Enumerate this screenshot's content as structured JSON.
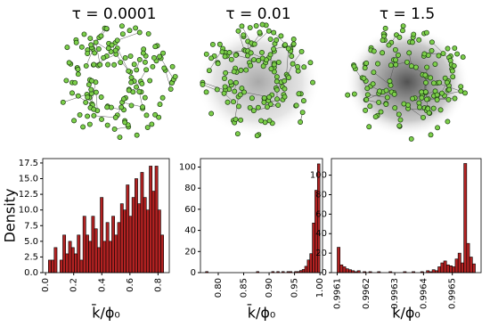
{
  "chart_data": [
    {
      "type": "histogram",
      "title": "τ = 0.0001",
      "ylabel": "Density",
      "xlabel": "k̄/ϕ₀",
      "color": "#b22222",
      "bins": [
        0.02,
        0.0405,
        0.061,
        0.0815,
        0.102,
        0.1225,
        0.143,
        0.1635,
        0.184,
        0.2045,
        0.225,
        0.2455,
        0.266,
        0.2865,
        0.307,
        0.3275,
        0.348,
        0.3685,
        0.389,
        0.4095,
        0.43,
        0.4505,
        0.471,
        0.4915,
        0.512,
        0.5325,
        0.553,
        0.5735,
        0.594,
        0.6145,
        0.635,
        0.6555,
        0.676,
        0.6965,
        0.717,
        0.7375,
        0.758,
        0.7785,
        0.799,
        0.8195,
        0.84
      ],
      "counts": [
        2,
        2,
        4,
        0,
        2,
        6,
        3,
        5,
        4,
        3,
        6,
        2,
        9,
        6,
        5,
        9,
        7,
        4,
        12,
        5,
        8,
        5,
        9,
        6,
        8,
        11,
        10,
        14,
        9,
        12,
        15,
        11,
        16,
        12,
        10,
        17,
        13,
        17,
        10,
        6
      ],
      "xlim": [
        -0.02,
        0.88
      ],
      "xticks": [
        {
          "value": 0,
          "label": "0.0"
        },
        0.2,
        0.4,
        0.6,
        0.8
      ],
      "ylim": [
        0,
        18.2
      ],
      "yticks": [
        {
          "value": 0,
          "label": "0.0"
        },
        2.5,
        {
          "value": 5,
          "label": "5.0"
        },
        7.5,
        {
          "value": 10,
          "label": "10.0"
        },
        12.5,
        {
          "value": 15,
          "label": "15.0"
        },
        17.5
      ]
    },
    {
      "type": "histogram",
      "title": "τ = 0.01",
      "xlabel": "k̄/ϕ₀",
      "color": "#b22222",
      "bins": [
        0.775,
        0.78,
        0.785,
        0.79,
        0.795,
        0.8,
        0.805,
        0.81,
        0.815,
        0.82,
        0.825,
        0.83,
        0.835,
        0.84,
        0.845,
        0.85,
        0.855,
        0.86,
        0.865,
        0.87,
        0.875,
        0.88,
        0.885,
        0.89,
        0.895,
        0.9,
        0.905,
        0.91,
        0.915,
        0.92,
        0.925,
        0.93,
        0.935,
        0.94,
        0.945,
        0.95,
        0.955,
        0.96,
        0.965,
        0.97,
        0.975,
        0.98,
        0.985,
        0.99,
        0.995,
        1.0
      ],
      "counts": [
        1,
        0,
        0,
        0,
        0,
        0,
        0,
        0,
        0,
        0,
        0,
        0,
        0,
        0,
        0,
        0,
        0,
        0,
        0,
        0,
        1,
        0,
        0,
        0,
        0,
        0,
        1,
        0,
        1,
        0,
        1,
        0,
        1,
        1,
        0,
        1,
        1,
        2,
        3,
        6,
        12,
        18,
        47,
        78,
        103
      ],
      "xlim": [
        0.765,
        1.005
      ],
      "xticks": [
        {
          "value": 0.8,
          "label": "0.80"
        },
        0.85,
        {
          "value": 0.9,
          "label": "0.90"
        },
        0.95,
        {
          "value": 1,
          "label": "1.00"
        }
      ],
      "ylim": [
        0,
        108
      ],
      "yticks": [
        0,
        20,
        40,
        60,
        80,
        100
      ]
    },
    {
      "type": "histogram",
      "title": "τ = 1.5",
      "xlabel": "k̄/ϕ₀",
      "color": "#b22222",
      "bins": [
        0.9961,
        0.99611,
        0.99612,
        0.99613,
        0.99614,
        0.99615,
        0.99616,
        0.99617,
        0.99618,
        0.99619,
        0.9962,
        0.99621,
        0.99622,
        0.99623,
        0.99624,
        0.99625,
        0.99626,
        0.99627,
        0.99628,
        0.99629,
        0.9963,
        0.99631,
        0.99632,
        0.99633,
        0.99634,
        0.99635,
        0.99636,
        0.99637,
        0.99638,
        0.99639,
        0.9964,
        0.99641,
        0.99642,
        0.99643,
        0.99644,
        0.99645,
        0.99646,
        0.99647,
        0.99648,
        0.99649,
        0.9965,
        0.99651,
        0.99652,
        0.99653,
        0.99654,
        0.99655,
        0.99656,
        0.99657,
        0.99658
      ],
      "counts": [
        26,
        8,
        6,
        4,
        3,
        2,
        1,
        2,
        0,
        1,
        0,
        1,
        0,
        0,
        1,
        0,
        0,
        0,
        1,
        0,
        0,
        0,
        0,
        1,
        0,
        0,
        1,
        0,
        0,
        1,
        0,
        2,
        1,
        3,
        2,
        6,
        10,
        12,
        8,
        7,
        6,
        14,
        20,
        10,
        112,
        30,
        16,
        9
      ],
      "xlim": [
        0.99608,
        0.9966
      ],
      "xticks": [
        0.9961,
        0.9962,
        0.9963,
        0.9964,
        0.9965
      ],
      "ylim": [
        0,
        117
      ],
      "yticks": [
        0,
        20,
        40,
        60,
        80,
        100
      ]
    }
  ]
}
